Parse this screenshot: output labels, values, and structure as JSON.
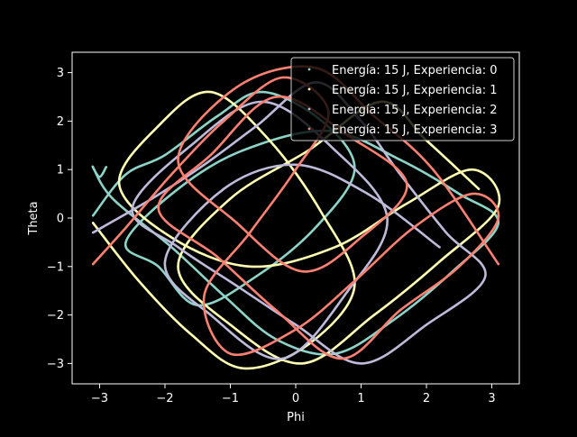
{
  "chart_data": {
    "type": "scatter",
    "title": "",
    "xlabel": "Phi",
    "ylabel": "Theta",
    "xlim": [
      -3.42,
      3.42
    ],
    "ylim": [
      -3.42,
      3.42
    ],
    "xticks": [
      -3,
      -2,
      -1,
      0,
      1,
      2,
      3
    ],
    "yticks": [
      -3,
      -2,
      -1,
      0,
      1,
      2,
      3
    ],
    "xtick_labels": [
      "−3",
      "−2",
      "−1",
      "0",
      "1",
      "2",
      "3"
    ],
    "ytick_labels": [
      "−3",
      "−2",
      "−1",
      "0",
      "1",
      "2",
      "3"
    ],
    "grid": false,
    "background": "#000000",
    "foreground": "#ffffff",
    "legend_position": "top-right",
    "series": [
      {
        "name": "Energía: 15 J, Experiencia: 0",
        "color": "#8dd3c7",
        "points": [
          [
            -3.1,
            0.05
          ],
          [
            -2.6,
            0.9
          ],
          [
            -2.0,
            1.3
          ],
          [
            -1.2,
            2.1
          ],
          [
            -0.5,
            2.6
          ],
          [
            0.4,
            2.0
          ],
          [
            0.9,
            1.0
          ],
          [
            0.3,
            -0.2
          ],
          [
            -0.6,
            -1.2
          ],
          [
            -1.5,
            -1.8
          ],
          [
            -2.1,
            -1.0
          ],
          [
            -2.6,
            -0.5
          ],
          [
            -1.8,
            0.6
          ],
          [
            -0.8,
            1.4
          ],
          [
            0.5,
            1.8
          ],
          [
            1.6,
            1.2
          ],
          [
            2.5,
            0.5
          ],
          [
            3.1,
            -0.1
          ],
          [
            2.4,
            -1.1
          ],
          [
            1.5,
            -2.1
          ],
          [
            0.6,
            -2.8
          ],
          [
            -0.3,
            -2.5
          ],
          [
            -1.1,
            -1.6
          ],
          [
            -1.9,
            -0.6
          ],
          [
            -2.8,
            0.4
          ],
          [
            -3.1,
            1.05
          ],
          [
            -3.0,
            0.85
          ],
          [
            -2.9,
            1.05
          ]
        ]
      },
      {
        "name": "Energía: 15 J, Experiencia: 1",
        "color": "#ffffb3",
        "points": [
          [
            -3.1,
            -0.1
          ],
          [
            -2.4,
            -1.3
          ],
          [
            -1.6,
            -2.4
          ],
          [
            -0.8,
            -3.1
          ],
          [
            0.2,
            -2.6
          ],
          [
            0.9,
            -1.4
          ],
          [
            0.4,
            0.1
          ],
          [
            -0.4,
            1.6
          ],
          [
            -1.3,
            2.6
          ],
          [
            -2.1,
            1.9
          ],
          [
            -2.7,
            0.7
          ],
          [
            -1.9,
            -0.4
          ],
          [
            -0.7,
            -1.0
          ],
          [
            0.6,
            -0.6
          ],
          [
            1.7,
            0.3
          ],
          [
            2.7,
            1.0
          ],
          [
            3.1,
            0.25
          ],
          [
            2.2,
            -0.9
          ],
          [
            1.2,
            -2.0
          ],
          [
            0.1,
            -3.0
          ],
          [
            -1.0,
            -2.2
          ],
          [
            -1.8,
            -1.0
          ],
          [
            -1.0,
            0.4
          ],
          [
            0.2,
            1.4
          ],
          [
            1.3,
            2.4
          ],
          [
            2.0,
            1.6
          ],
          [
            2.8,
            0.6
          ]
        ]
      },
      {
        "name": "Energía: 15 J, Experiencia: 2",
        "color": "#bebada",
        "points": [
          [
            -3.1,
            -0.3
          ],
          [
            -2.2,
            0.4
          ],
          [
            -1.4,
            1.1
          ],
          [
            -0.6,
            1.9
          ],
          [
            0.3,
            2.8
          ],
          [
            1.0,
            2.0
          ],
          [
            1.6,
            0.9
          ],
          [
            2.3,
            -0.3
          ],
          [
            2.9,
            -1.2
          ],
          [
            2.0,
            -2.2
          ],
          [
            1.0,
            -3.0
          ],
          [
            0.0,
            -2.2
          ],
          [
            -0.9,
            -1.4
          ],
          [
            -1.8,
            -0.6
          ],
          [
            -2.5,
            0.2
          ],
          [
            -1.6,
            1.5
          ],
          [
            -0.5,
            2.4
          ],
          [
            0.6,
            1.4
          ],
          [
            1.4,
            0.0
          ],
          [
            0.8,
            -1.5
          ],
          [
            -0.2,
            -2.9
          ],
          [
            -1.3,
            -2.0
          ],
          [
            -2.0,
            -0.9
          ],
          [
            -1.1,
            0.6
          ],
          [
            0.0,
            1.1
          ],
          [
            1.1,
            0.5
          ],
          [
            2.2,
            -0.6
          ]
        ]
      },
      {
        "name": "Energía: 15 J, Experiencia: 3",
        "color": "#fb8072",
        "points": [
          [
            -3.1,
            -0.95
          ],
          [
            -2.6,
            -0.2
          ],
          [
            -1.9,
            0.9
          ],
          [
            -1.1,
            2.0
          ],
          [
            -0.2,
            2.9
          ],
          [
            0.5,
            2.2
          ],
          [
            0.0,
            1.0
          ],
          [
            -0.7,
            -0.3
          ],
          [
            -1.4,
            -1.6
          ],
          [
            -1.0,
            -2.8
          ],
          [
            0.0,
            -2.3
          ],
          [
            0.9,
            -1.3
          ],
          [
            1.8,
            -0.2
          ],
          [
            2.7,
            0.5
          ],
          [
            3.1,
            0.0
          ],
          [
            2.5,
            -1.0
          ],
          [
            1.6,
            -1.9
          ],
          [
            0.7,
            -2.9
          ],
          [
            -0.3,
            -1.9
          ],
          [
            -1.2,
            -0.8
          ],
          [
            -2.1,
            0.2
          ],
          [
            -1.3,
            1.3
          ],
          [
            -0.3,
            2.5
          ],
          [
            0.8,
            1.7
          ],
          [
            1.7,
            0.7
          ],
          [
            1.0,
            -0.4
          ],
          [
            0.1,
            -1.1
          ],
          [
            -0.9,
            -0.1
          ],
          [
            -1.8,
            1.2
          ],
          [
            -0.9,
            2.7
          ],
          [
            0.3,
            3.1
          ],
          [
            1.2,
            2.1
          ],
          [
            2.1,
            1.0
          ],
          [
            3.1,
            -0.95
          ]
        ]
      }
    ]
  }
}
